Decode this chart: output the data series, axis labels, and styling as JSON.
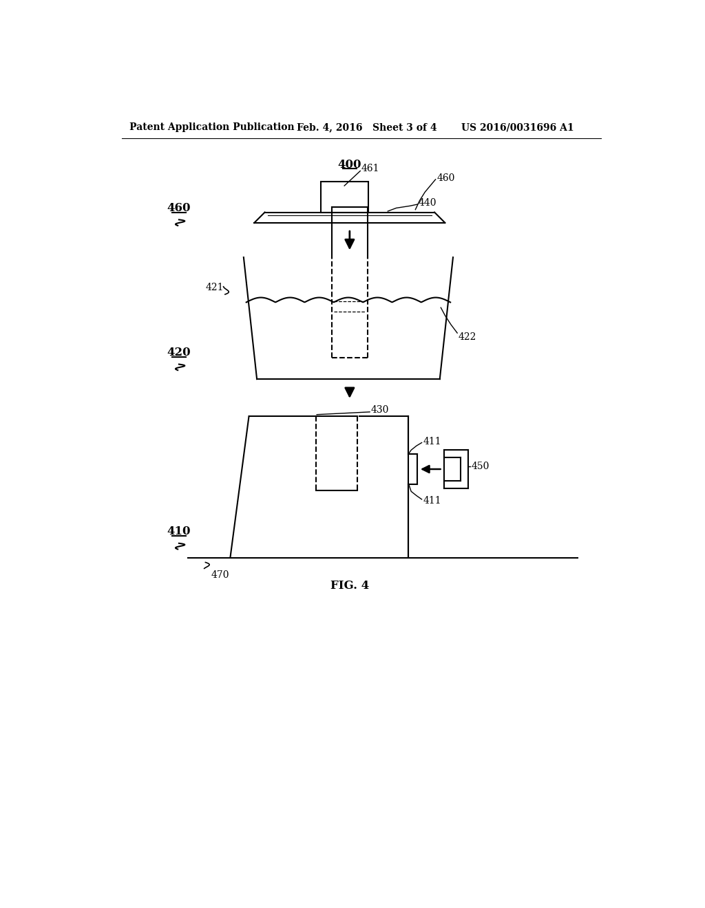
{
  "bg_color": "#ffffff",
  "text_color": "#000000",
  "header_left": "Patent Application Publication",
  "header_mid": "Feb. 4, 2016   Sheet 3 of 4",
  "header_right": "US 2016/0031696 A1",
  "fig_label": "FIG. 4",
  "main_label": "400"
}
